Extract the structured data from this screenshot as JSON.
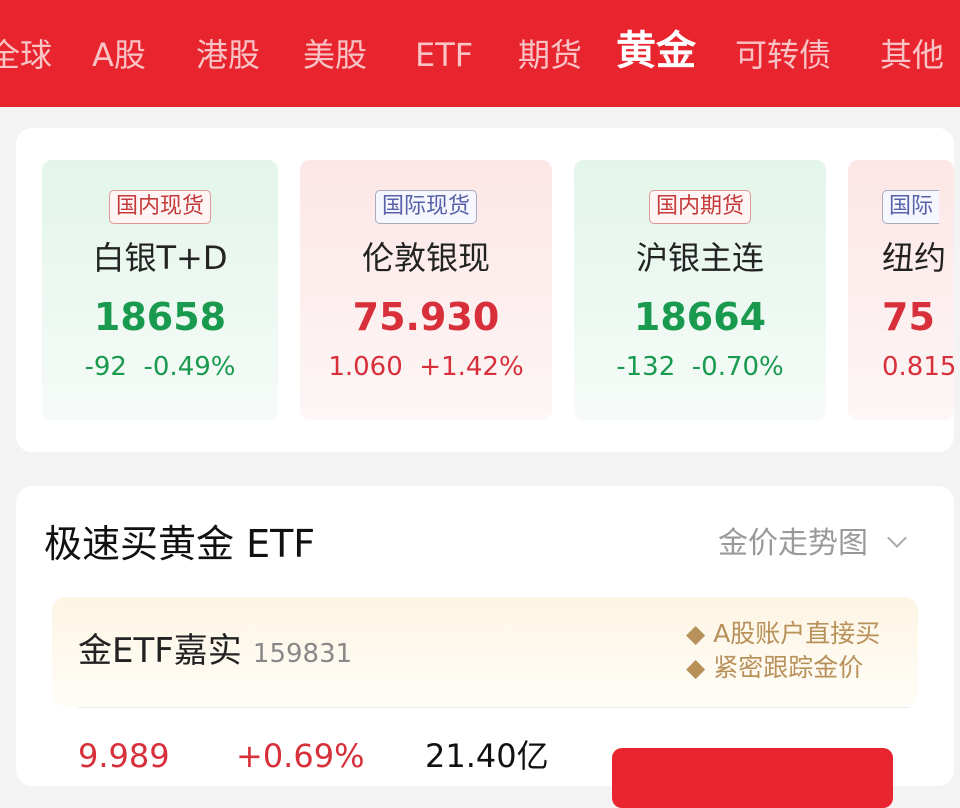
{
  "tabs": [
    {
      "label": "全球"
    },
    {
      "label": "A股"
    },
    {
      "label": "港股"
    },
    {
      "label": "美股"
    },
    {
      "label": "ETF"
    },
    {
      "label": "期货"
    },
    {
      "label": "黄金",
      "active": true
    },
    {
      "label": "可转债"
    },
    {
      "label": "其他"
    }
  ],
  "markets": [
    {
      "badge": "国内现货",
      "name": "白银T+D",
      "value": "18658",
      "change": "-92",
      "pct": "-0.49%",
      "trend": "down"
    },
    {
      "badge": "国际现货",
      "name": "伦敦银现",
      "value": "75.930",
      "change": "1.060",
      "pct": "+1.42%",
      "trend": "up"
    },
    {
      "badge": "国内期货",
      "name": "沪银主连",
      "value": "18664",
      "change": "-132",
      "pct": "-0.70%",
      "trend": "down"
    },
    {
      "badge": "国际",
      "name": "纽约",
      "value": "75",
      "change": "0.815",
      "pct": "",
      "trend": "up"
    }
  ],
  "etf_section": {
    "title": "极速买黄金 ETF",
    "trend_link": "金价走势图",
    "fund": {
      "name": "金ETF嘉实",
      "code": "159831",
      "features": [
        "A股账户直接买",
        "紧密跟踪金价"
      ],
      "price": "9.989",
      "pct": "+0.69%",
      "volume": "21.40亿"
    }
  },
  "colors": {
    "brand": "#e8252e",
    "up": "#d8303a",
    "down": "#1a9a4f",
    "gold": "#b8915a"
  }
}
